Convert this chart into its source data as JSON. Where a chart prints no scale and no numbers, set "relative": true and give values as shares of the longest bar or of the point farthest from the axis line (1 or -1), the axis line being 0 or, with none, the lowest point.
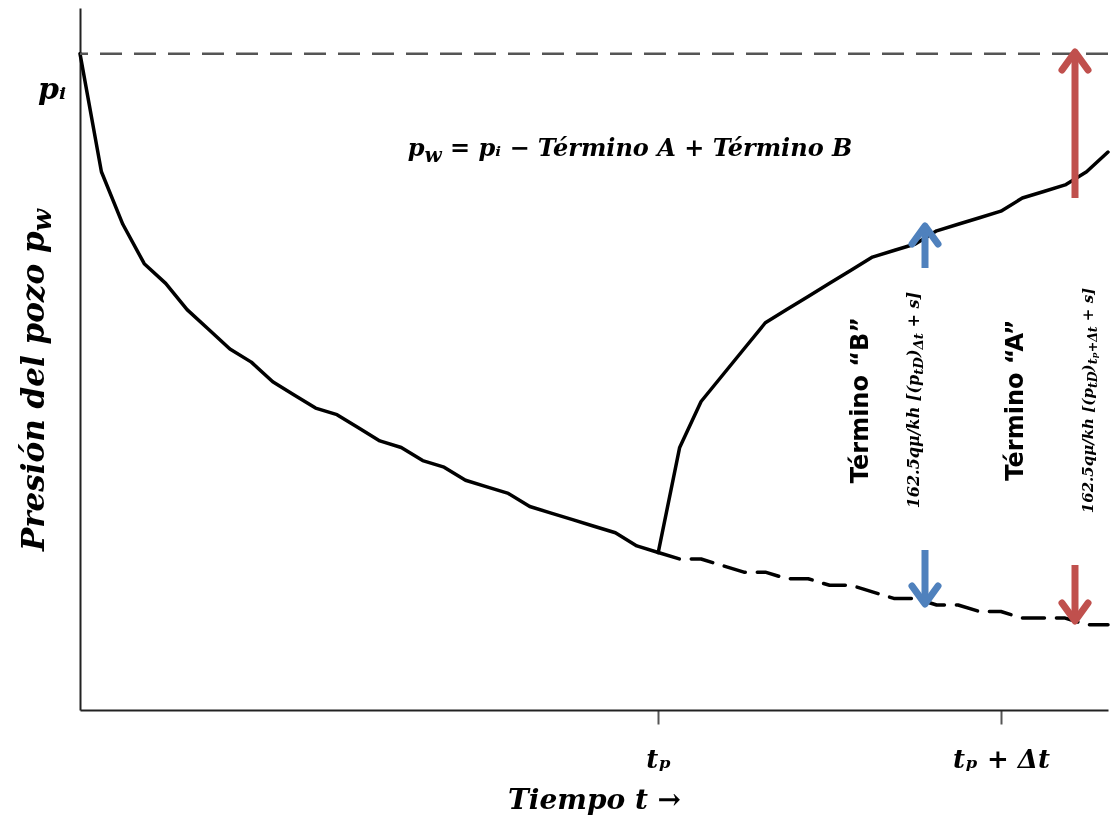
{
  "chart_data": {
    "type": "line",
    "relative": true,
    "xlabel": "Tiempo t →",
    "ylabel": "Presión del pozo p$_{w}$",
    "categories": [
      null,
      null,
      null,
      null,
      null,
      null,
      null,
      null,
      null,
      null,
      null,
      null,
      null,
      null,
      null,
      null,
      null,
      null,
      null,
      null,
      null,
      null,
      null,
      null,
      null,
      null,
      null,
      "tₚ",
      null,
      null,
      null,
      null,
      null,
      null,
      null,
      null,
      null,
      null,
      null,
      null,
      null,
      null,
      null,
      "tₚ + Δt",
      null,
      null,
      null,
      null,
      null
    ],
    "series": [
      {
        "color": "#000000",
        "line_style": "solid",
        "values": [
          1,
          0.82,
          0.74,
          0.68,
          0.65,
          0.61,
          0.58,
          0.55,
          0.53,
          0.5,
          0.48,
          0.46,
          0.45,
          0.43,
          0.41,
          0.4,
          0.38,
          0.37,
          0.35,
          0.34,
          0.33,
          0.31,
          0.3,
          0.29,
          0.28,
          0.27,
          0.25,
          0.24,
          null,
          null,
          null,
          null,
          null,
          null,
          null,
          null,
          null,
          null,
          null,
          null,
          null,
          null,
          null,
          null,
          null,
          null,
          null,
          null,
          null
        ]
      },
      {
        "color": "#000000",
        "line_style": "dashed",
        "values": [
          null,
          null,
          null,
          null,
          null,
          null,
          null,
          null,
          null,
          null,
          null,
          null,
          null,
          null,
          null,
          null,
          null,
          null,
          null,
          null,
          null,
          null,
          null,
          null,
          null,
          null,
          null,
          0.24,
          0.23,
          0.23,
          0.22,
          0.21,
          0.21,
          0.2,
          0.2,
          0.19,
          0.19,
          0.18,
          0.17,
          0.17,
          0.16,
          0.16,
          0.15,
          0.15,
          0.14,
          0.14,
          0.14,
          0.13,
          0.13
        ]
      },
      {
        "color": "#000000",
        "line_style": "solid",
        "values": [
          null,
          null,
          null,
          null,
          null,
          null,
          null,
          null,
          null,
          null,
          null,
          null,
          null,
          null,
          null,
          null,
          null,
          null,
          null,
          null,
          null,
          null,
          null,
          null,
          null,
          null,
          null,
          0.24,
          0.4,
          0.47,
          0.51,
          0.55,
          0.59,
          0.61,
          0.63,
          0.65,
          0.67,
          0.69,
          0.7,
          0.71,
          0.73,
          0.74,
          0.75,
          0.76,
          0.78,
          0.79,
          0.8,
          0.82,
          0.85
        ]
      }
    ],
    "ref_lines": [
      {
        "axis": "y",
        "value": 1,
        "label": "pᵢ",
        "line_style": "dashed",
        "color": "#555555"
      }
    ],
    "annotations": [
      "p$_{w}$ = pᵢ − Término A + Término B",
      "Término “B”",
      "162.5qμ/kh [(p$_{tD}$)$_{Δt}$ + s]",
      "Término “A”",
      "162.5qμ/kh [(p$_{tD}$)$_{tₚ+Δt}$ + s]"
    ],
    "tick_labels": "x"
  }
}
